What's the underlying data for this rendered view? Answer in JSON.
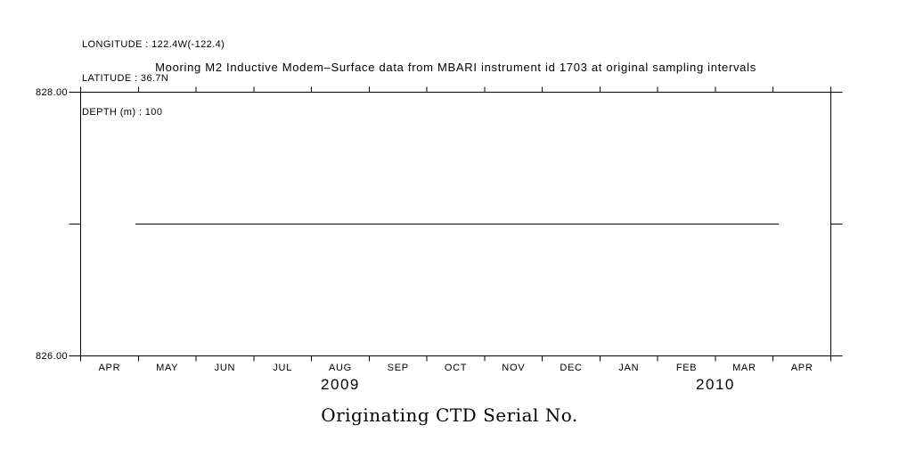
{
  "meta": {
    "lines": [
      "LONGITUDE : 122.4W(-122.4)",
      "LATITUDE : 36.7N",
      "DEPTH (m) : 100"
    ]
  },
  "title": "Mooring M2 Inductive Modem–Surface data from MBARI instrument id 1703 at original sampling intervals",
  "bottom_label": "Originating CTD Serial No.",
  "colors": {
    "foreground": "#000000",
    "background": "#ffffff"
  },
  "chart_data": {
    "type": "line",
    "title": "Mooring M2 Inductive Modem–Surface data from MBARI instrument id 1703 at original sampling intervals",
    "variable": "Originating CTD Serial No.",
    "grid": false,
    "legend": false,
    "x_axis": {
      "month_tick_labels": [
        "APR",
        "MAY",
        "JUN",
        "JUL",
        "AUG",
        "SEP",
        "OCT",
        "NOV",
        "DEC",
        "JAN",
        "FEB",
        "MAR",
        "APR"
      ],
      "year_labels": [
        {
          "text": "2009",
          "span_month_index": [
            0,
            9
          ]
        },
        {
          "text": "2010",
          "span_month_index": [
            9,
            13
          ]
        }
      ],
      "range_months": 13,
      "tick_style": "outward ticks at each month boundary on top and bottom axes"
    },
    "y_axis": {
      "min": 826.0,
      "max": 828.0,
      "ticks": [
        {
          "value": 828.0,
          "label": "828.00"
        },
        {
          "value": 827.0,
          "label": ""
        },
        {
          "value": 826.0,
          "label": "826.00"
        }
      ]
    },
    "series": [
      {
        "name": "Originating CTD Serial No.",
        "value": 827.0,
        "start_month_offset": 0.95,
        "end_month_offset": 12.1
      }
    ]
  }
}
